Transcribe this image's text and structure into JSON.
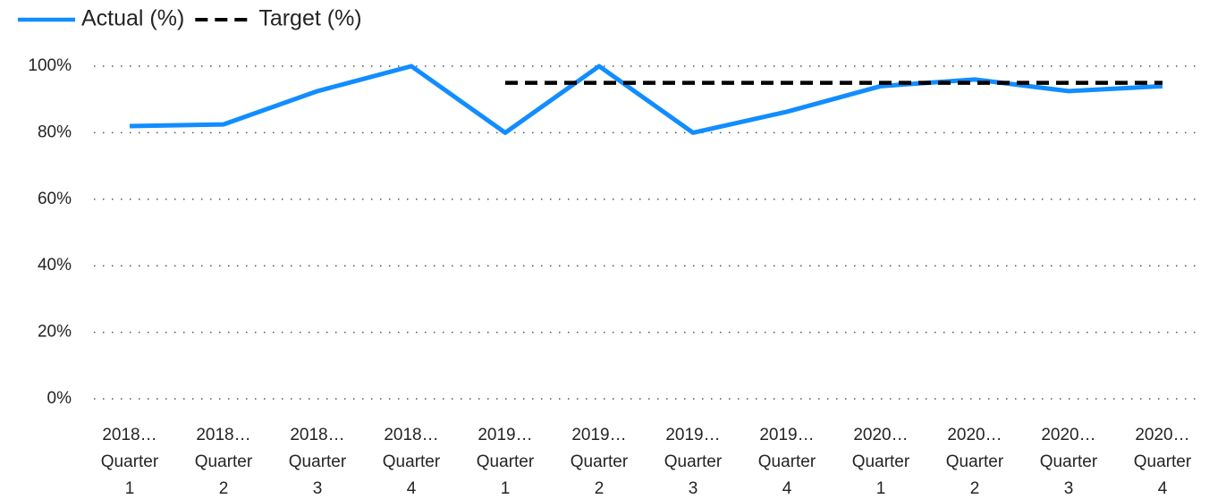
{
  "chart_data": {
    "type": "line",
    "categories": [
      "2018… Quarter 1",
      "2018… Quarter 2",
      "2018… Quarter 3",
      "2018… Quarter 4",
      "2019… Quarter 1",
      "2019… Quarter 2",
      "2019… Quarter 3",
      "2019… Quarter 4",
      "2020… Quarter 1",
      "2020… Quarter 2",
      "2020… Quarter 3",
      "2020… Quarter 4"
    ],
    "series": [
      {
        "name": "Actual (%)",
        "color": "#118dff",
        "dash": false,
        "values": [
          82,
          82.5,
          92.5,
          100,
          80,
          100,
          80,
          86.3,
          94,
          96,
          92.5,
          94
        ]
      },
      {
        "name": "Target (%)",
        "color": "#000000",
        "dash": true,
        "values": [
          null,
          null,
          null,
          null,
          95,
          95,
          95,
          95,
          95,
          95,
          95,
          95
        ]
      }
    ],
    "ylim": [
      0,
      100
    ],
    "yticks": [
      {
        "value": 0,
        "label": "0%"
      },
      {
        "value": 20,
        "label": "20%"
      },
      {
        "value": 40,
        "label": "40%"
      },
      {
        "value": 60,
        "label": "60%"
      },
      {
        "value": 80,
        "label": "80%"
      },
      {
        "value": 100,
        "label": "100%"
      }
    ],
    "grid": true,
    "legend": "top-left"
  }
}
